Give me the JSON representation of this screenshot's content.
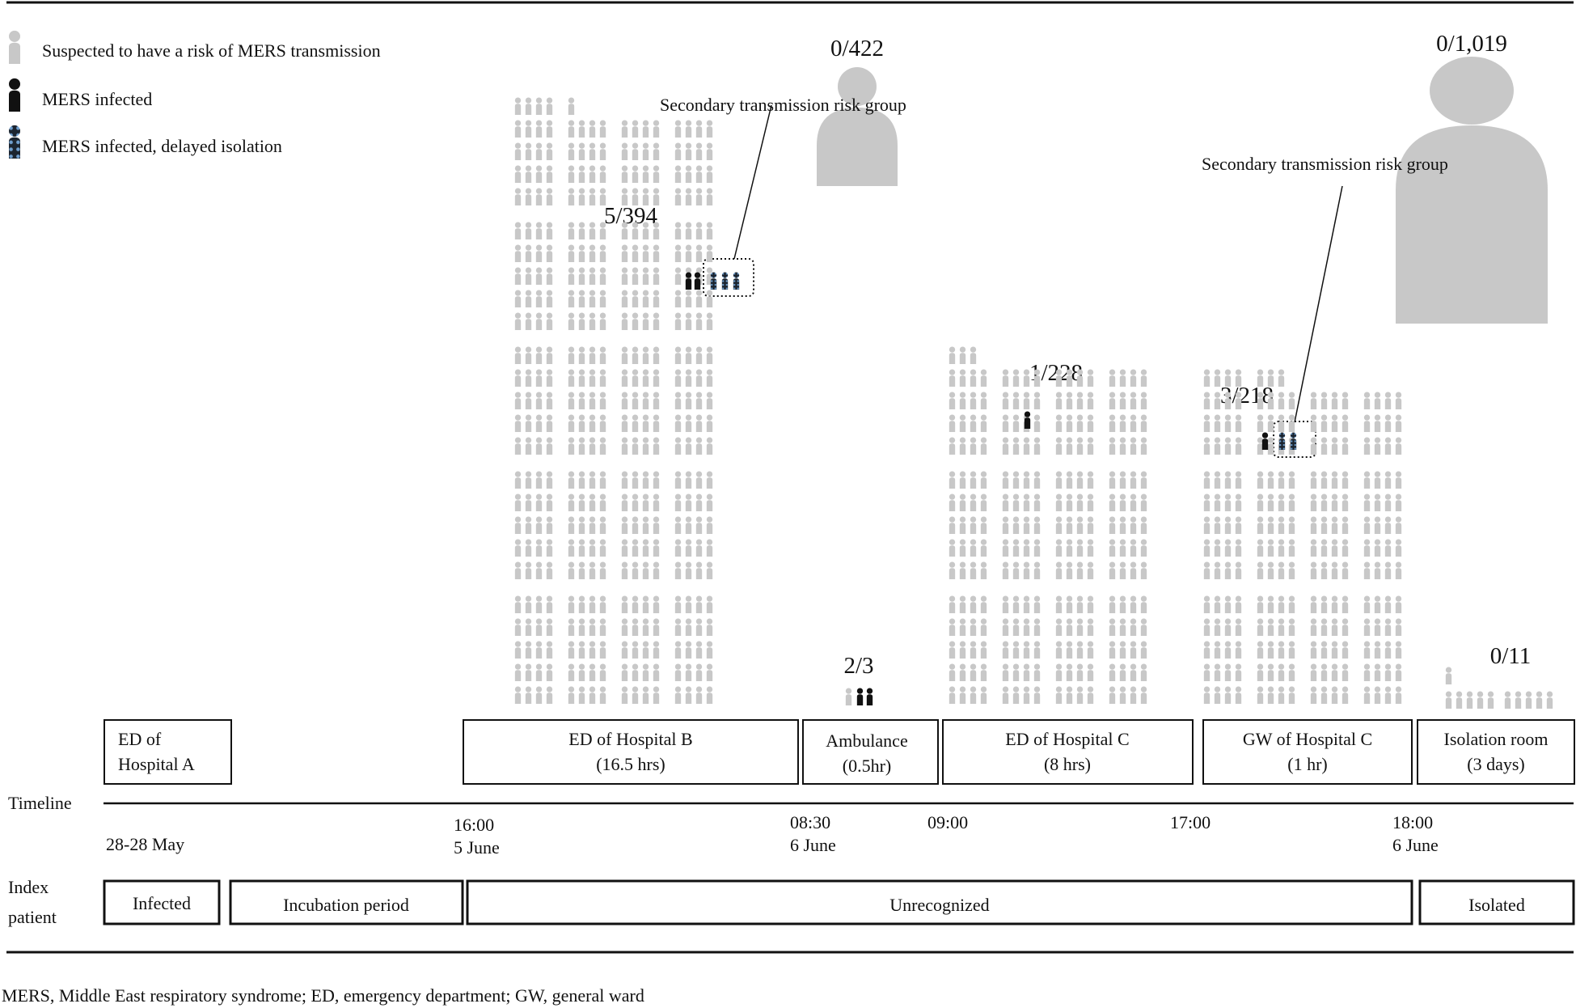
{
  "legend": {
    "suspected": "Suspected to have a risk of MERS transmission",
    "infected": "MERS infected",
    "delayed": "MERS infected, delayed  isolation"
  },
  "secondary_groups": [
    {
      "count": "0/422",
      "label": "Secondary transmission risk group"
    },
    {
      "count": "0/1,019",
      "label": "Secondary transmission risk group"
    }
  ],
  "locations": [
    {
      "id": "ed-hospital-a",
      "line1": "ED of",
      "line2": "Hospital A",
      "count": ""
    },
    {
      "id": "ed-hospital-b",
      "line1": "ED of Hospital B",
      "line2": "(16.5 hrs)",
      "count": "5/394",
      "exposed": 394,
      "infected": 5,
      "delayed": 3
    },
    {
      "id": "ambulance",
      "line1": "Ambulance",
      "line2": "(0.5hr)",
      "count": "2/3",
      "exposed": 3,
      "infected": 2,
      "delayed": 0
    },
    {
      "id": "ed-hospital-c",
      "line1": "ED of Hospital C",
      "line2": "(8 hrs)",
      "count": "1/228",
      "exposed": 228,
      "infected": 1,
      "delayed": 0
    },
    {
      "id": "gw-hospital-c",
      "line1": "GW of Hospital C",
      "line2": "(1 hr)",
      "count": "3/218",
      "exposed": 218,
      "infected": 3,
      "delayed": 2
    },
    {
      "id": "isolation-room",
      "line1": "Isolation room",
      "line2": "(3 days)",
      "count": "0/11",
      "exposed": 11,
      "infected": 0,
      "delayed": 0
    }
  ],
  "timeline": {
    "label": "Timeline",
    "ticks": [
      {
        "time": "28-28 May",
        "date": ""
      },
      {
        "time": "16:00",
        "date": "5 June"
      },
      {
        "time": "08:30",
        "date": "6 June"
      },
      {
        "time": "09:00",
        "date": ""
      },
      {
        "time": "17:00",
        "date": ""
      },
      {
        "time": "18:00",
        "date": "6 June"
      }
    ]
  },
  "index_patient": {
    "label_line1": "Index",
    "label_line2": "patient",
    "stages": [
      "Infected",
      "Incubation period",
      "Unrecognized",
      "Isolated"
    ]
  },
  "footnote": "MERS, Middle East respiratory syndrome; ED, emergency department; GW, general ward"
}
